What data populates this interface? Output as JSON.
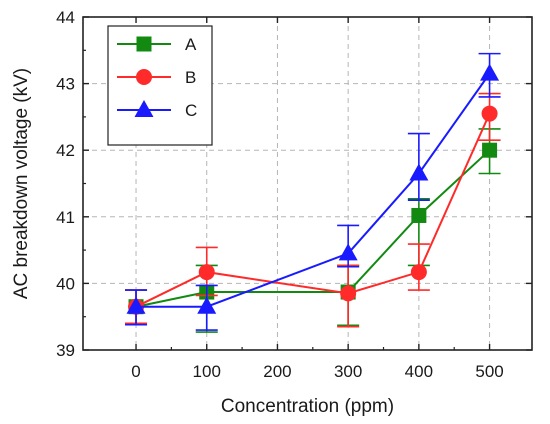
{
  "chart_data": {
    "type": "line",
    "title": "",
    "xlabel": "Concentration (ppm)",
    "ylabel": "AC breakdown voltage (kV)",
    "xlim": [
      -75,
      560
    ],
    "ylim": [
      39,
      44
    ],
    "xticks": [
      0,
      100,
      200,
      300,
      400,
      500
    ],
    "yticks": [
      39,
      40,
      41,
      42,
      43,
      44
    ],
    "x_tick_labels": [
      "0",
      "100",
      "200",
      "300",
      "400",
      "500"
    ],
    "y_tick_labels": [
      "39",
      "40",
      "41",
      "42",
      "43",
      "44"
    ],
    "grid": true,
    "legend_position": "top-left",
    "series": [
      {
        "name": "A",
        "color": "#128a12",
        "marker": "square",
        "x": [
          0,
          100,
          300,
          400,
          500
        ],
        "y": [
          39.65,
          39.87,
          39.87,
          41.02,
          42.0
        ],
        "err_low": [
          0.25,
          0.6,
          0.5,
          0.75,
          0.35
        ],
        "err_high": [
          0.25,
          0.4,
          0.4,
          0.25,
          0.32
        ]
      },
      {
        "name": "B",
        "color": "#ff2a2a",
        "marker": "circle",
        "x": [
          0,
          100,
          300,
          400,
          500
        ],
        "y": [
          39.65,
          40.17,
          39.85,
          40.17,
          42.55
        ],
        "err_low": [
          0.25,
          0.35,
          0.5,
          0.27,
          0.4
        ],
        "err_high": [
          0.25,
          0.37,
          0.42,
          0.42,
          0.3
        ]
      },
      {
        "name": "C",
        "color": "#1a1aff",
        "marker": "triangle",
        "x": [
          0,
          100,
          300,
          400,
          500
        ],
        "y": [
          39.65,
          39.65,
          40.45,
          41.65,
          43.15
        ],
        "err_low": [
          0.27,
          0.35,
          0.2,
          0.4,
          0.35
        ],
        "err_high": [
          0.25,
          0.32,
          0.42,
          0.6,
          0.3
        ]
      }
    ]
  }
}
